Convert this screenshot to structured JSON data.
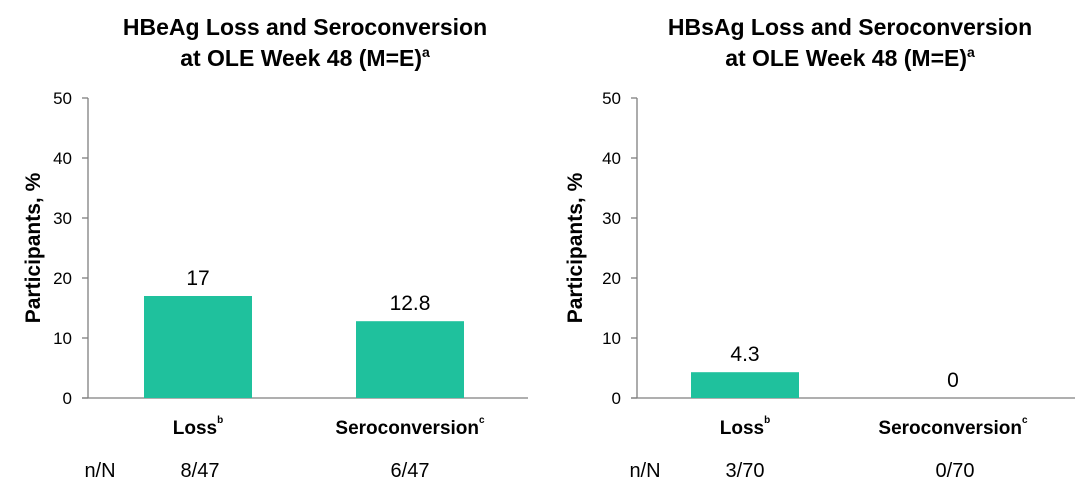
{
  "bar_color": "#1fc19d",
  "row_label": "n/N",
  "chart_data": [
    {
      "type": "bar",
      "title": [
        "HBeAg Loss and Seroconversion",
        "at OLE Week 48 (M=E)"
      ],
      "title_superscript": "a",
      "ylabel": "Participants, %",
      "ylim": [
        0,
        50
      ],
      "yticks": [
        0,
        10,
        20,
        30,
        40,
        50
      ],
      "categories": [
        "Loss",
        "Seroconversion"
      ],
      "category_superscripts": [
        "b",
        "c"
      ],
      "values": [
        17,
        12.8
      ],
      "value_labels": [
        "17",
        "12.8"
      ],
      "n_over_N": [
        "8/47",
        "6/47"
      ]
    },
    {
      "type": "bar",
      "title": [
        "HBsAg Loss and Seroconversion",
        "at OLE Week 48 (M=E)"
      ],
      "title_superscript": "a",
      "ylabel": "Participants, %",
      "ylim": [
        0,
        50
      ],
      "yticks": [
        0,
        10,
        20,
        30,
        40,
        50
      ],
      "categories": [
        "Loss",
        "Seroconversion"
      ],
      "category_superscripts": [
        "b",
        "c"
      ],
      "values": [
        4.3,
        0
      ],
      "value_labels": [
        "4.3",
        "0"
      ],
      "n_over_N": [
        "3/70",
        "0/70"
      ]
    }
  ]
}
